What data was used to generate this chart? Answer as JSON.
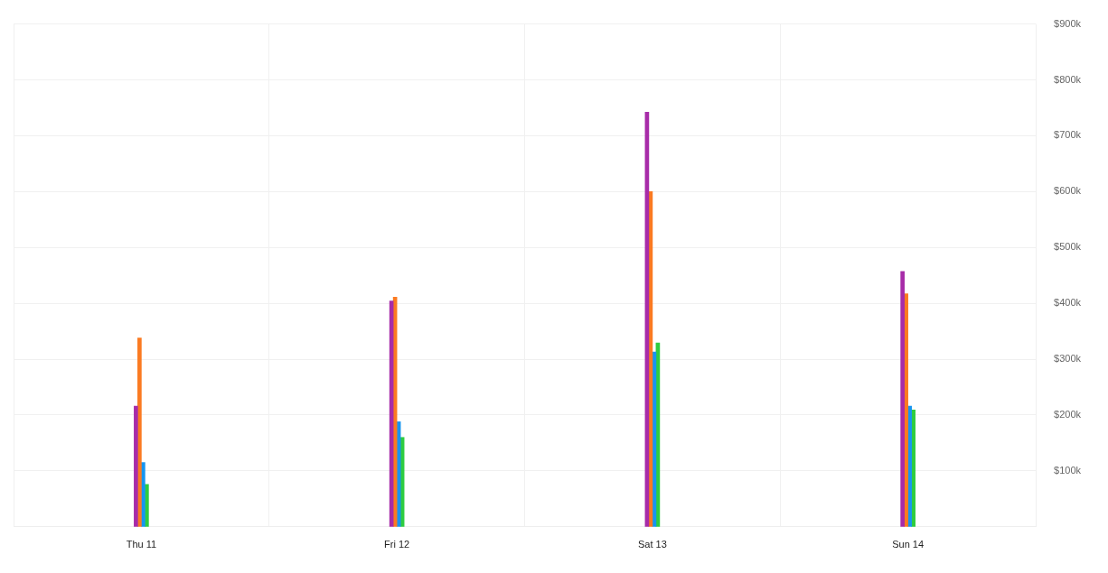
{
  "chart_data": {
    "type": "bar",
    "categories": [
      "Thu 11",
      "Fri 12",
      "Sat 13",
      "Sun 14"
    ],
    "series": [
      {
        "color": "#a72ca8",
        "values": [
          216000,
          404000,
          742000,
          457000
        ]
      },
      {
        "color": "#fb7a21",
        "values": [
          338000,
          411000,
          600000,
          417000
        ]
      },
      {
        "color": "#1795f0",
        "values": [
          115000,
          188000,
          313000,
          216000
        ]
      },
      {
        "color": "#2ecc40",
        "values": [
          76000,
          160000,
          329000,
          209000
        ]
      }
    ],
    "ylim": [
      0,
      900000
    ],
    "yticks": [
      {
        "value": 100000,
        "label": "$100k"
      },
      {
        "value": 200000,
        "label": "$200k"
      },
      {
        "value": 300000,
        "label": "$300k"
      },
      {
        "value": 400000,
        "label": "$400k"
      },
      {
        "value": 500000,
        "label": "$500k"
      },
      {
        "value": 600000,
        "label": "$600k"
      },
      {
        "value": 700000,
        "label": "$700k"
      },
      {
        "value": 800000,
        "label": "$800k"
      },
      {
        "value": 900000,
        "label": "$900k"
      }
    ],
    "grid": true,
    "legend": false
  }
}
